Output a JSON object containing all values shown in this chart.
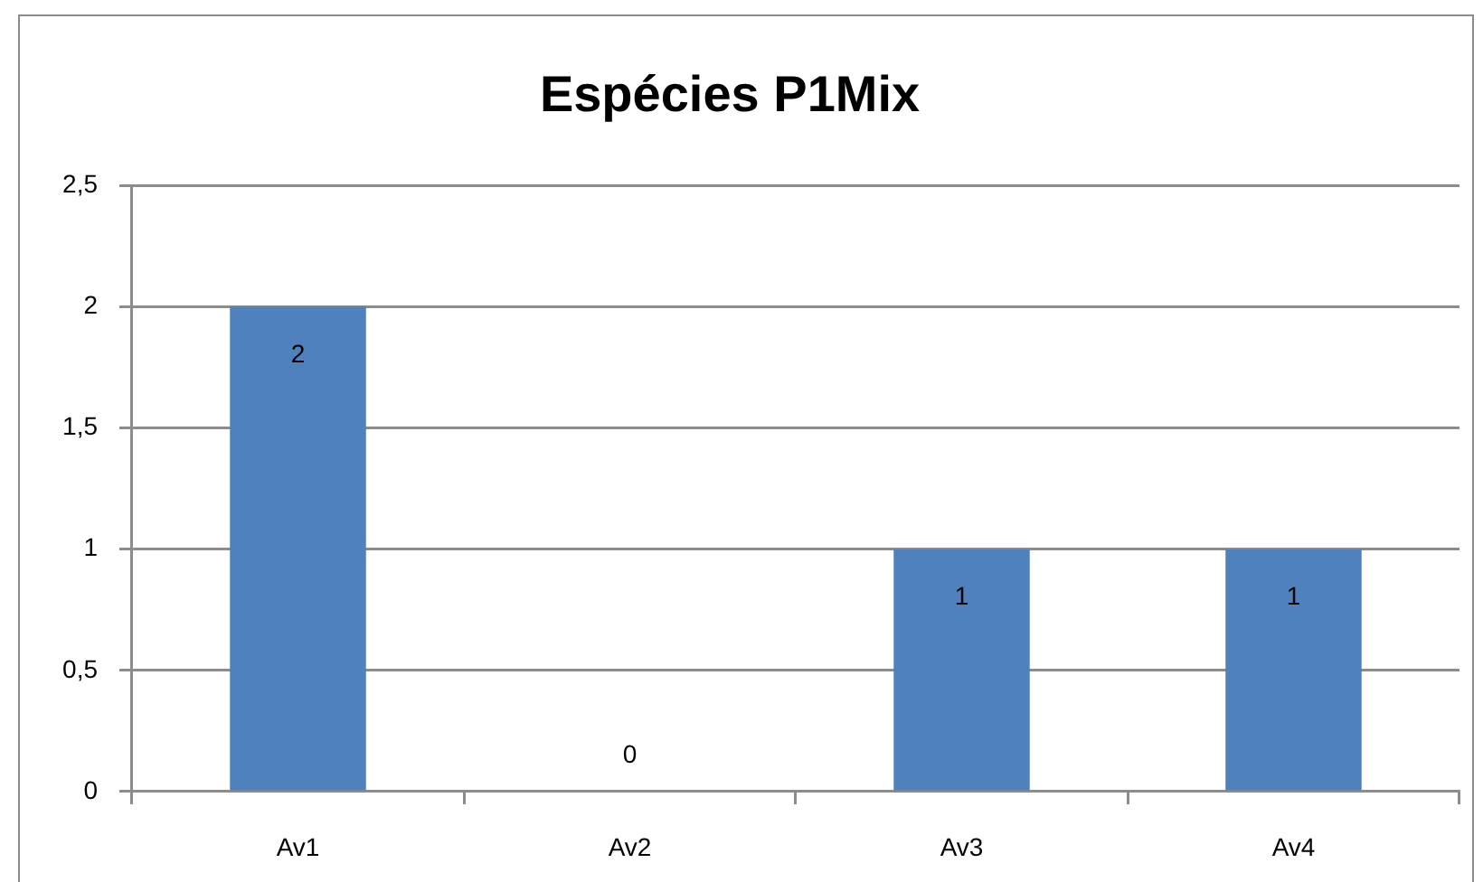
{
  "chart_data": {
    "type": "bar",
    "title": "Espécies P1Mix",
    "categories": [
      "Av1",
      "Av2",
      "Av3",
      "Av4"
    ],
    "values": [
      2,
      0,
      1,
      1
    ],
    "color": "#4f81bd",
    "ylim": [
      0,
      2.5
    ],
    "yticks": [
      0,
      {
        "value": 0.5,
        "label": "0,5"
      },
      1,
      {
        "value": 1.5,
        "label": "1,5"
      },
      2,
      {
        "value": 2.5,
        "label": "2,5"
      }
    ],
    "grid": "y",
    "data_labels": true
  }
}
